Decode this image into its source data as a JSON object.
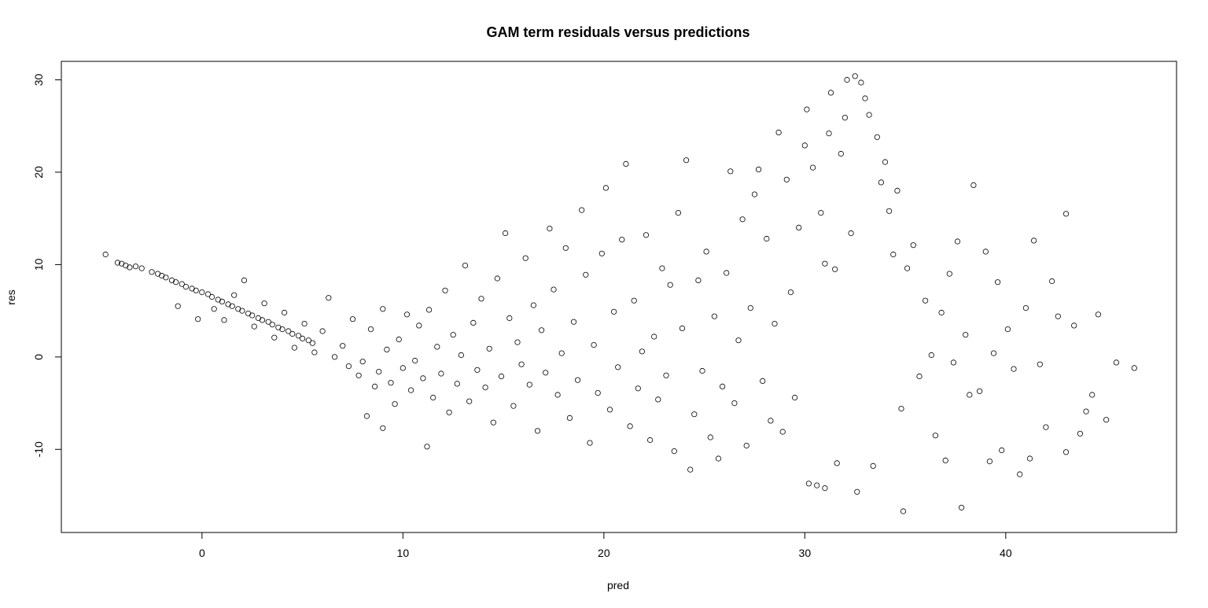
{
  "chart_data": {
    "type": "scatter",
    "title": "GAM term residuals versus predictions",
    "xlabel": "pred",
    "ylabel": "res",
    "xlim": [
      -7,
      48.5
    ],
    "ylim": [
      -19,
      32
    ],
    "x_ticks": [
      0,
      10,
      20,
      30,
      40
    ],
    "x_tick_labels": [
      "0",
      "10",
      "20",
      "30",
      "40"
    ],
    "y_ticks": [
      -10,
      0,
      10,
      20,
      30
    ],
    "y_tick_labels": [
      "-10",
      "0",
      "10",
      "20",
      "30"
    ],
    "marker": "open-circle",
    "grid": false,
    "legend": "none",
    "point_color": "#000000",
    "points": [
      [
        -4.8,
        11.1
      ],
      [
        -4.2,
        10.2
      ],
      [
        -4.0,
        10.1
      ],
      [
        -3.8,
        9.9
      ],
      [
        -3.6,
        9.7
      ],
      [
        -3.3,
        9.8
      ],
      [
        -3.0,
        9.6
      ],
      [
        -2.5,
        9.2
      ],
      [
        -2.2,
        9.0
      ],
      [
        -2.0,
        8.8
      ],
      [
        -1.8,
        8.6
      ],
      [
        -1.5,
        8.3
      ],
      [
        -1.3,
        8.1
      ],
      [
        -1.0,
        7.9
      ],
      [
        -0.8,
        7.6
      ],
      [
        -0.5,
        7.4
      ],
      [
        -0.3,
        7.2
      ],
      [
        0.0,
        7.0
      ],
      [
        0.3,
        6.8
      ],
      [
        0.5,
        6.5
      ],
      [
        0.8,
        6.2
      ],
      [
        1.0,
        6.0
      ],
      [
        1.3,
        5.7
      ],
      [
        1.5,
        5.5
      ],
      [
        1.8,
        5.2
      ],
      [
        2.0,
        5.0
      ],
      [
        2.3,
        4.7
      ],
      [
        2.5,
        4.5
      ],
      [
        2.8,
        4.2
      ],
      [
        3.0,
        4.0
      ],
      [
        3.3,
        3.8
      ],
      [
        3.5,
        3.5
      ],
      [
        3.8,
        3.2
      ],
      [
        4.0,
        3.0
      ],
      [
        4.3,
        2.8
      ],
      [
        4.5,
        2.5
      ],
      [
        4.8,
        2.3
      ],
      [
        5.0,
        2.0
      ],
      [
        5.3,
        1.8
      ],
      [
        5.5,
        1.5
      ],
      [
        -1.2,
        5.5
      ],
      [
        -0.2,
        4.1
      ],
      [
        0.6,
        5.2
      ],
      [
        1.1,
        4.0
      ],
      [
        1.6,
        6.7
      ],
      [
        2.1,
        8.3
      ],
      [
        2.6,
        3.3
      ],
      [
        3.1,
        5.8
      ],
      [
        3.6,
        2.1
      ],
      [
        4.1,
        4.8
      ],
      [
        4.6,
        1.0
      ],
      [
        5.1,
        3.6
      ],
      [
        5.6,
        0.5
      ],
      [
        6.0,
        2.8
      ],
      [
        6.3,
        6.4
      ],
      [
        6.6,
        0.0
      ],
      [
        7.0,
        1.2
      ],
      [
        7.3,
        -1.0
      ],
      [
        7.5,
        4.1
      ],
      [
        7.8,
        -2.0
      ],
      [
        8.0,
        -0.5
      ],
      [
        8.2,
        -6.4
      ],
      [
        8.4,
        3.0
      ],
      [
        8.6,
        -3.2
      ],
      [
        8.8,
        -1.6
      ],
      [
        9.0,
        5.2
      ],
      [
        9.0,
        -7.7
      ],
      [
        9.2,
        0.8
      ],
      [
        9.4,
        -2.8
      ],
      [
        9.6,
        -5.1
      ],
      [
        9.8,
        1.9
      ],
      [
        10.0,
        -1.2
      ],
      [
        10.2,
        4.6
      ],
      [
        10.4,
        -3.6
      ],
      [
        10.6,
        -0.4
      ],
      [
        10.8,
        3.4
      ],
      [
        11.0,
        -2.3
      ],
      [
        11.2,
        -9.7
      ],
      [
        11.3,
        5.1
      ],
      [
        11.5,
        -4.4
      ],
      [
        11.7,
        1.1
      ],
      [
        11.9,
        -1.8
      ],
      [
        12.1,
        7.2
      ],
      [
        12.3,
        -6.0
      ],
      [
        12.5,
        2.4
      ],
      [
        12.7,
        -2.9
      ],
      [
        12.9,
        0.2
      ],
      [
        13.1,
        9.9
      ],
      [
        13.3,
        -4.8
      ],
      [
        13.5,
        3.7
      ],
      [
        13.7,
        -1.4
      ],
      [
        13.9,
        6.3
      ],
      [
        14.1,
        -3.3
      ],
      [
        14.3,
        0.9
      ],
      [
        14.5,
        -7.1
      ],
      [
        14.7,
        8.5
      ],
      [
        14.9,
        -2.1
      ],
      [
        15.1,
        13.4
      ],
      [
        15.3,
        4.2
      ],
      [
        15.5,
        -5.3
      ],
      [
        15.7,
        1.6
      ],
      [
        15.9,
        -0.8
      ],
      [
        16.1,
        10.7
      ],
      [
        16.3,
        -3.0
      ],
      [
        16.5,
        5.6
      ],
      [
        16.7,
        -8.0
      ],
      [
        16.9,
        2.9
      ],
      [
        17.1,
        -1.7
      ],
      [
        17.3,
        13.9
      ],
      [
        17.5,
        7.3
      ],
      [
        17.7,
        -4.1
      ],
      [
        17.9,
        0.4
      ],
      [
        18.1,
        11.8
      ],
      [
        18.3,
        -6.6
      ],
      [
        18.5,
        3.8
      ],
      [
        18.7,
        -2.5
      ],
      [
        18.9,
        15.9
      ],
      [
        19.1,
        8.9
      ],
      [
        19.3,
        -9.3
      ],
      [
        19.5,
        1.3
      ],
      [
        19.7,
        -3.9
      ],
      [
        19.9,
        11.2
      ],
      [
        20.1,
        18.3
      ],
      [
        20.3,
        -5.7
      ],
      [
        20.5,
        4.9
      ],
      [
        20.7,
        -1.1
      ],
      [
        20.9,
        12.7
      ],
      [
        21.1,
        20.9
      ],
      [
        21.3,
        -7.5
      ],
      [
        21.5,
        6.1
      ],
      [
        21.7,
        -3.4
      ],
      [
        21.9,
        0.6
      ],
      [
        22.1,
        13.2
      ],
      [
        22.3,
        -9.0
      ],
      [
        22.5,
        2.2
      ],
      [
        22.7,
        -4.6
      ],
      [
        22.9,
        9.6
      ],
      [
        23.1,
        -2.0
      ],
      [
        23.3,
        7.8
      ],
      [
        23.5,
        -10.2
      ],
      [
        23.7,
        15.6
      ],
      [
        23.9,
        3.1
      ],
      [
        24.1,
        21.3
      ],
      [
        24.3,
        -12.2
      ],
      [
        24.5,
        -6.2
      ],
      [
        24.7,
        8.3
      ],
      [
        24.9,
        -1.5
      ],
      [
        25.1,
        11.4
      ],
      [
        25.3,
        -8.7
      ],
      [
        25.5,
        4.4
      ],
      [
        25.7,
        -11.0
      ],
      [
        25.9,
        -3.2
      ],
      [
        26.1,
        9.1
      ],
      [
        26.3,
        20.1
      ],
      [
        26.5,
        -5.0
      ],
      [
        26.7,
        1.8
      ],
      [
        26.9,
        14.9
      ],
      [
        27.1,
        -9.6
      ],
      [
        27.3,
        5.3
      ],
      [
        27.5,
        17.6
      ],
      [
        27.7,
        20.3
      ],
      [
        27.9,
        -2.6
      ],
      [
        28.1,
        12.8
      ],
      [
        28.3,
        -6.9
      ],
      [
        28.5,
        3.6
      ],
      [
        28.7,
        24.3
      ],
      [
        28.9,
        -8.1
      ],
      [
        29.1,
        19.2
      ],
      [
        29.3,
        7.0
      ],
      [
        29.5,
        -4.4
      ],
      [
        29.7,
        14.0
      ],
      [
        30.0,
        22.9
      ],
      [
        30.1,
        26.8
      ],
      [
        30.2,
        -13.7
      ],
      [
        30.4,
        20.5
      ],
      [
        30.6,
        -13.9
      ],
      [
        30.8,
        15.6
      ],
      [
        31.0,
        10.1
      ],
      [
        31.0,
        -14.2
      ],
      [
        31.2,
        24.2
      ],
      [
        31.3,
        28.6
      ],
      [
        31.5,
        9.5
      ],
      [
        31.6,
        -11.5
      ],
      [
        31.8,
        22.0
      ],
      [
        32.0,
        25.9
      ],
      [
        32.1,
        30.0
      ],
      [
        32.3,
        13.4
      ],
      [
        32.5,
        30.4
      ],
      [
        32.6,
        -14.6
      ],
      [
        32.8,
        29.7
      ],
      [
        33.0,
        28.0
      ],
      [
        33.2,
        26.2
      ],
      [
        33.4,
        -11.8
      ],
      [
        33.6,
        23.8
      ],
      [
        33.8,
        18.9
      ],
      [
        34.0,
        21.1
      ],
      [
        34.2,
        15.8
      ],
      [
        34.4,
        11.1
      ],
      [
        34.6,
        18.0
      ],
      [
        34.8,
        -5.6
      ],
      [
        34.9,
        -16.7
      ],
      [
        35.1,
        9.6
      ],
      [
        35.4,
        12.1
      ],
      [
        35.7,
        -2.1
      ],
      [
        36.0,
        6.1
      ],
      [
        36.3,
        0.2
      ],
      [
        36.5,
        -8.5
      ],
      [
        36.8,
        4.8
      ],
      [
        37.0,
        -11.2
      ],
      [
        37.2,
        9.0
      ],
      [
        37.4,
        -0.6
      ],
      [
        37.6,
        12.5
      ],
      [
        37.8,
        -16.3
      ],
      [
        38.0,
        2.4
      ],
      [
        38.2,
        -4.1
      ],
      [
        38.4,
        18.6
      ],
      [
        38.7,
        -3.7
      ],
      [
        39.0,
        11.4
      ],
      [
        39.2,
        -11.3
      ],
      [
        39.4,
        0.4
      ],
      [
        39.6,
        8.1
      ],
      [
        39.8,
        -10.1
      ],
      [
        40.1,
        3.0
      ],
      [
        40.4,
        -1.3
      ],
      [
        40.7,
        -12.7
      ],
      [
        41.0,
        5.3
      ],
      [
        41.2,
        -11.0
      ],
      [
        41.4,
        12.6
      ],
      [
        41.7,
        -0.8
      ],
      [
        42.0,
        -7.6
      ],
      [
        42.3,
        8.2
      ],
      [
        42.6,
        4.4
      ],
      [
        43.0,
        15.5
      ],
      [
        43.0,
        -10.3
      ],
      [
        43.4,
        3.4
      ],
      [
        43.7,
        -8.3
      ],
      [
        44.0,
        -5.9
      ],
      [
        44.3,
        -4.1
      ],
      [
        44.6,
        4.6
      ],
      [
        45.0,
        -6.8
      ],
      [
        45.5,
        -0.6
      ],
      [
        46.4,
        -1.2
      ]
    ]
  }
}
